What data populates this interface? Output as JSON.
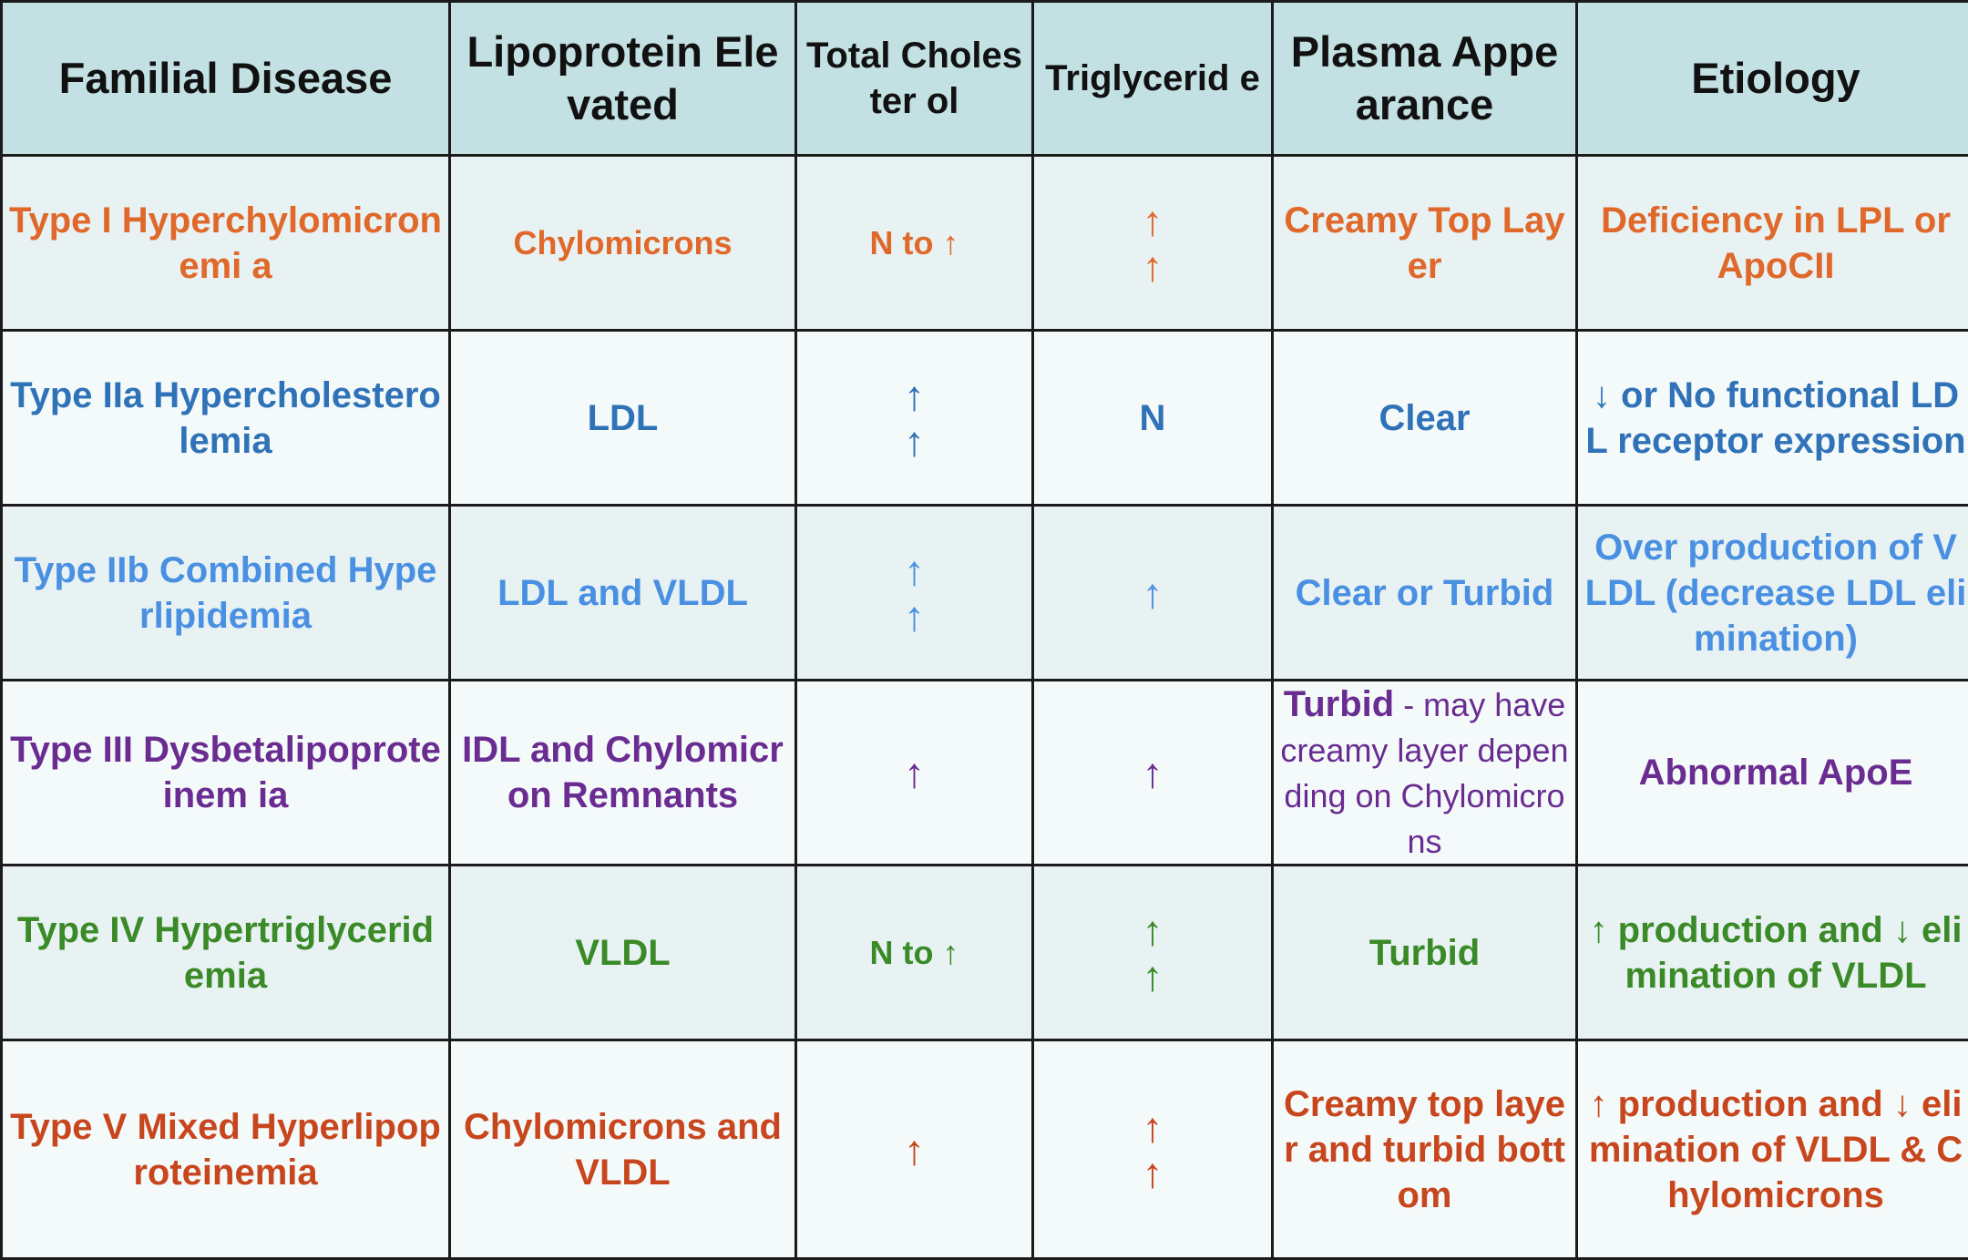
{
  "headers": {
    "disease": "Familial Disease",
    "lipoprotein": "Lipoprotein Elevated",
    "cholesterol": "Total Cholester ol",
    "triglyceride": "Triglycerid e",
    "plasma": "Plasma Appearance",
    "etiology": "Etiology"
  },
  "colors": {
    "header_bg": "#c3e0e2",
    "type_1": "#e0682a",
    "type_2a": "#2f72b8",
    "type_2b": "#4a90e2",
    "type_3": "#6a2c91",
    "type_4": "#3a8a28",
    "type_5": "#c8461e"
  },
  "rows": [
    {
      "disease": "Type I Hyperchylomicronemi a",
      "lipoprotein": "Chylomicrons",
      "cholesterol": "N to ↑",
      "triglyceride": [
        "↑",
        "↑"
      ],
      "plasma": "Creamy Top Layer",
      "etiology": "Deficiency in LPL or ApoCII"
    },
    {
      "disease": "Type IIa Hypercholesterolemia",
      "lipoprotein": "LDL",
      "cholesterol": [
        "↑",
        "↑"
      ],
      "triglyceride": "N",
      "plasma": "Clear",
      "etiology": "↓ or No functional LDL receptor expression"
    },
    {
      "disease": "Type IIb Combined Hyperlipidemia",
      "lipoprotein": "LDL and VLDL",
      "cholesterol": [
        "↑",
        "↑"
      ],
      "triglyceride": "↑",
      "plasma": "Clear or Turbid",
      "etiology": "Over production of VLDL (decrease LDL elimination)"
    },
    {
      "disease": "Type III Dysbetalipoproteinem ia",
      "lipoprotein": "IDL and Chylomicron Remnants",
      "cholesterol": "↑",
      "triglyceride": "↑",
      "plasma_bold": "Turbid",
      "plasma_rest": " - may have creamy layer depending on Chylomicrons",
      "etiology": "Abnormal ApoE"
    },
    {
      "disease": "Type IV Hypertriglyceridemia",
      "lipoprotein": "VLDL",
      "cholesterol": "N to ↑",
      "triglyceride": [
        "↑",
        "↑"
      ],
      "plasma": "Turbid",
      "etiology": "↑ production and ↓ elimination of VLDL"
    },
    {
      "disease": "Type V Mixed Hyperlipoproteinemia",
      "lipoprotein": "Chylomicrons and VLDL",
      "cholesterol": "↑",
      "triglyceride": [
        "↑",
        "↑"
      ],
      "plasma": "Creamy top layer and turbid bottom",
      "etiology": "↑ production and ↓ elimination of VLDL & Chylomicrons"
    }
  ]
}
